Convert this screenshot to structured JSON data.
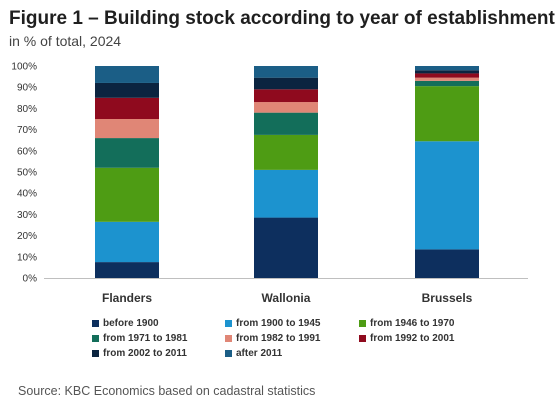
{
  "header": {
    "title": "Figure 1 – Building stock according to year of establishment",
    "subtitle": "in % of total, 2024"
  },
  "footer": {
    "source": "Source: KBC Economics based on cadastral statistics"
  },
  "chart_data": {
    "type": "bar",
    "stacked": true,
    "categories": [
      "Flanders",
      "Wallonia",
      "Brussels"
    ],
    "ylim": [
      0,
      100
    ],
    "yticks": [
      "0%",
      "10%",
      "20%",
      "30%",
      "40%",
      "50%",
      "60%",
      "70%",
      "80%",
      "90%",
      "100%"
    ],
    "grid": false,
    "legend_position": "bottom",
    "series": [
      {
        "name": "before 1900",
        "color": "#0d2f5e",
        "values": [
          7.5,
          28.5,
          13.5
        ]
      },
      {
        "name": "from 1900 to 1945",
        "color": "#1c93cf",
        "values": [
          19,
          22.5,
          51
        ]
      },
      {
        "name": "from 1946 to 1970",
        "color": "#4e9c14",
        "values": [
          25.5,
          16.5,
          26
        ]
      },
      {
        "name": "from 1971 to 1981",
        "color": "#136e5a",
        "values": [
          14,
          10.5,
          2.5
        ]
      },
      {
        "name": "from 1982 to 1991",
        "color": "#e08676",
        "values": [
          9,
          5,
          1.5
        ]
      },
      {
        "name": "from 1992 to 2001",
        "color": "#8f0a1e",
        "values": [
          10,
          6,
          2
        ]
      },
      {
        "name": "from 2002 to 2011",
        "color": "#0b2440",
        "values": [
          7,
          5.5,
          1.5
        ]
      },
      {
        "name": "after 2011",
        "color": "#1b5e86",
        "values": [
          8,
          5.5,
          2
        ]
      }
    ]
  }
}
